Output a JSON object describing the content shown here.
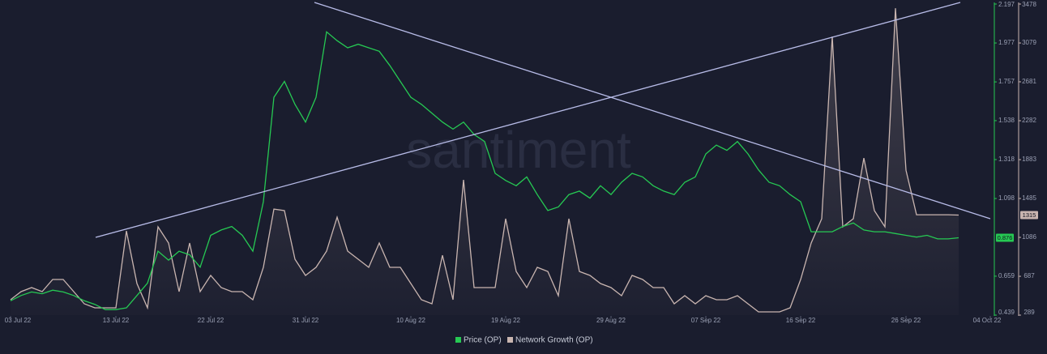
{
  "chart_data": {
    "type": "line",
    "watermark": "santiment",
    "x": [
      "2022-07-03",
      "2022-07-04",
      "2022-07-05",
      "2022-07-06",
      "2022-07-07",
      "2022-07-08",
      "2022-07-09",
      "2022-07-10",
      "2022-07-11",
      "2022-07-12",
      "2022-07-13",
      "2022-07-14",
      "2022-07-15",
      "2022-07-16",
      "2022-07-17",
      "2022-07-18",
      "2022-07-19",
      "2022-07-20",
      "2022-07-21",
      "2022-07-22",
      "2022-07-23",
      "2022-07-24",
      "2022-07-25",
      "2022-07-26",
      "2022-07-27",
      "2022-07-28",
      "2022-07-29",
      "2022-07-30",
      "2022-07-31",
      "2022-08-01",
      "2022-08-02",
      "2022-08-03",
      "2022-08-04",
      "2022-08-05",
      "2022-08-06",
      "2022-08-07",
      "2022-08-08",
      "2022-08-09",
      "2022-08-10",
      "2022-08-11",
      "2022-08-12",
      "2022-08-13",
      "2022-08-14",
      "2022-08-15",
      "2022-08-16",
      "2022-08-17",
      "2022-08-18",
      "2022-08-19",
      "2022-08-20",
      "2022-08-21",
      "2022-08-22",
      "2022-08-23",
      "2022-08-24",
      "2022-08-25",
      "2022-08-26",
      "2022-08-27",
      "2022-08-28",
      "2022-08-29",
      "2022-08-30",
      "2022-08-31",
      "2022-09-01",
      "2022-09-02",
      "2022-09-03",
      "2022-09-04",
      "2022-09-05",
      "2022-09-06",
      "2022-09-07",
      "2022-09-08",
      "2022-09-09",
      "2022-09-10",
      "2022-09-11",
      "2022-09-12",
      "2022-09-13",
      "2022-09-14",
      "2022-09-15",
      "2022-09-16",
      "2022-09-17",
      "2022-09-18",
      "2022-09-19",
      "2022-09-20",
      "2022-09-21",
      "2022-09-22",
      "2022-09-23",
      "2022-09-24",
      "2022-09-25",
      "2022-09-26",
      "2022-09-27",
      "2022-09-28",
      "2022-09-29",
      "2022-09-30",
      "2022-10-01"
    ],
    "series": [
      {
        "name": "Price (OP)",
        "color": "#26c953",
        "axis": "y",
        "current_value": 0.876,
        "values": [
          0.52,
          0.55,
          0.57,
          0.56,
          0.58,
          0.57,
          0.55,
          0.52,
          0.5,
          0.47,
          0.47,
          0.48,
          0.55,
          0.62,
          0.8,
          0.75,
          0.8,
          0.78,
          0.71,
          0.89,
          0.92,
          0.94,
          0.89,
          0.8,
          1.08,
          1.67,
          1.76,
          1.63,
          1.53,
          1.67,
          2.04,
          1.99,
          1.95,
          1.97,
          1.95,
          1.93,
          1.85,
          1.76,
          1.67,
          1.63,
          1.58,
          1.53,
          1.49,
          1.53,
          1.46,
          1.42,
          1.24,
          1.2,
          1.17,
          1.22,
          1.12,
          1.03,
          1.05,
          1.12,
          1.14,
          1.1,
          1.17,
          1.12,
          1.19,
          1.24,
          1.22,
          1.17,
          1.14,
          1.12,
          1.19,
          1.22,
          1.35,
          1.4,
          1.37,
          1.42,
          1.35,
          1.26,
          1.19,
          1.17,
          1.12,
          1.08,
          0.91,
          0.91,
          0.91,
          0.94,
          0.96,
          0.92,
          0.91,
          0.91,
          0.9,
          0.89,
          0.88,
          0.89,
          0.87,
          0.87,
          0.876
        ]
      },
      {
        "name": "Network Growth (OP)",
        "color": "#c9b5b0",
        "axis": "y2",
        "current_value": 1315,
        "values": [
          447,
          530,
          571,
          530,
          654,
          654,
          530,
          405,
          364,
          364,
          364,
          1152,
          613,
          364,
          1194,
          1028,
          530,
          1028,
          530,
          696,
          571,
          530,
          530,
          447,
          779,
          1376,
          1360,
          862,
          696,
          779,
          945,
          1293,
          945,
          862,
          779,
          1028,
          779,
          779,
          613,
          447,
          405,
          903,
          447,
          1675,
          571,
          571,
          571,
          1277,
          737,
          571,
          779,
          737,
          488,
          1277,
          737,
          696,
          613,
          571,
          488,
          696,
          654,
          571,
          571,
          405,
          488,
          405,
          488,
          447,
          447,
          488,
          405,
          322,
          322,
          322,
          364,
          654,
          1028,
          1277,
          3144,
          1194,
          1277,
          1899,
          1360,
          1194,
          3435,
          1775,
          1318,
          1318,
          1318,
          1318,
          1315
        ]
      }
    ],
    "xlim": [
      "2022-07-02",
      "2022-10-04"
    ],
    "xticks": [
      {
        "value": "2022-07-03",
        "label": "03 Jul 22"
      },
      {
        "value": "2022-07-13",
        "label": "13 Jul 22"
      },
      {
        "value": "2022-07-22",
        "label": "22 Jul 22"
      },
      {
        "value": "2022-07-31",
        "label": "31 Jul 22"
      },
      {
        "value": "2022-08-10",
        "label": "10 Aug 22"
      },
      {
        "value": "2022-08-19",
        "label": "19 Aug 22"
      },
      {
        "value": "2022-08-29",
        "label": "29 Aug 22"
      },
      {
        "value": "2022-09-07",
        "label": "07 Sep 22"
      },
      {
        "value": "2022-09-16",
        "label": "16 Sep 22"
      },
      {
        "value": "2022-09-26",
        "label": "26 Sep 22"
      },
      {
        "value": "2022-10-04",
        "label": "04 Oct 22"
      }
    ],
    "ylim": [
      0.439,
      2.197
    ],
    "yticks": [
      0.439,
      0.659,
      1.098,
      1.318,
      1.538,
      1.757,
      1.977,
      2.197
    ],
    "y2lim": [
      289,
      3478
    ],
    "y2ticks": [
      289,
      687,
      1086,
      1485,
      1883,
      2282,
      2681,
      3079,
      3478
    ]
  }
}
